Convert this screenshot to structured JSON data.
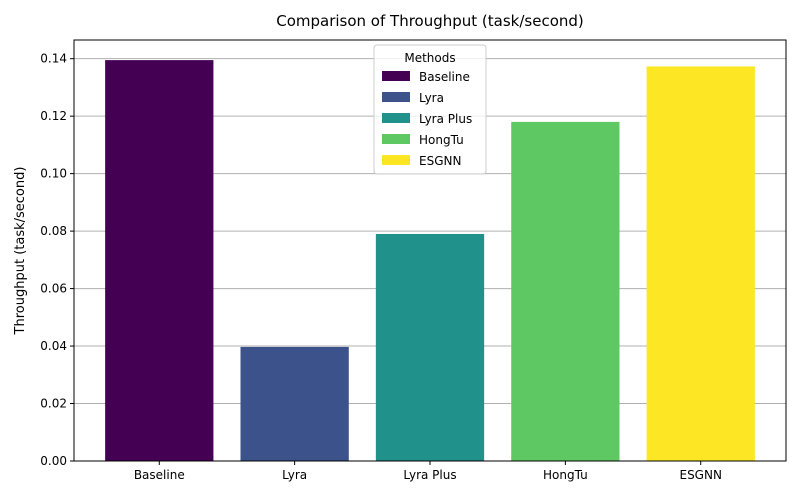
{
  "chart_data": {
    "type": "bar",
    "title": "Comparison of Throughput (task/second)",
    "xlabel": "",
    "ylabel": "Throughput (task/second)",
    "categories": [
      "Baseline",
      "Lyra",
      "Lyra Plus",
      "HongTu",
      "ESGNN"
    ],
    "values": [
      0.1395,
      0.0397,
      0.079,
      0.118,
      0.1373
    ],
    "colors": [
      "#440154",
      "#3b528b",
      "#21918c",
      "#5ec962",
      "#fde725"
    ],
    "ylim": [
      0,
      0.1465
    ],
    "yticks": [
      "0.00",
      "0.02",
      "0.04",
      "0.06",
      "0.08",
      "0.10",
      "0.12",
      "0.14"
    ],
    "grid": "y-major",
    "legend": {
      "title": "Methods",
      "placement": "top-center",
      "entries": [
        "Baseline",
        "Lyra",
        "Lyra Plus",
        "HongTu",
        "ESGNN"
      ]
    }
  }
}
